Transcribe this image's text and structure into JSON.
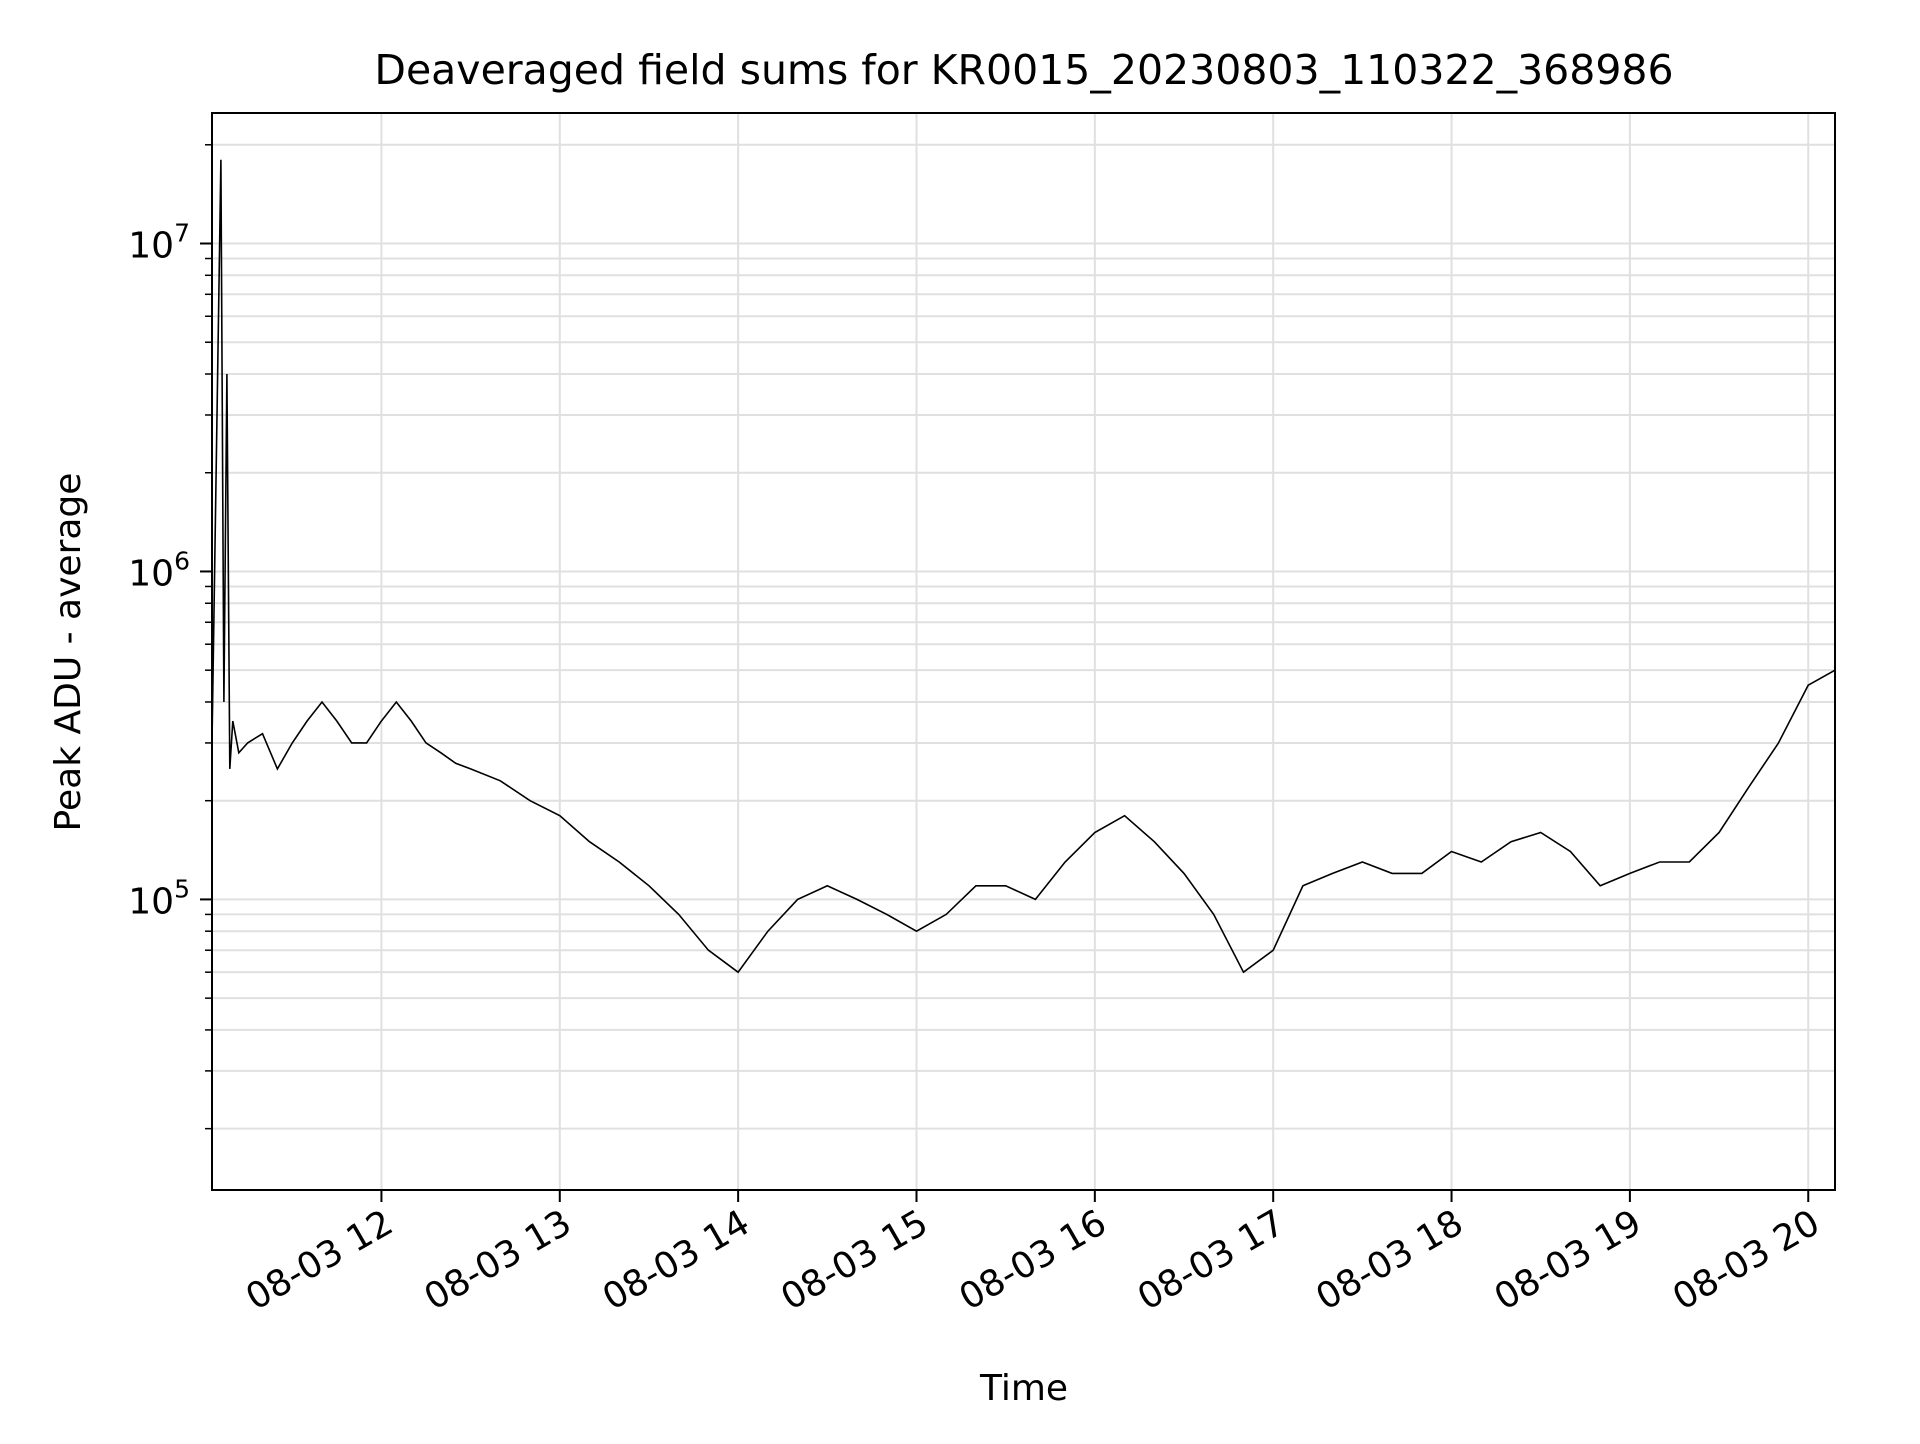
{
  "chart_data": {
    "type": "line",
    "title": "Deaveraged field sums for KR0015_20230803_110322_368986",
    "xlabel": "Time",
    "ylabel": "Peak ADU - average",
    "yscale": "log",
    "grid": true,
    "grid_minor": true,
    "legend": "none",
    "line_color": "#000000",
    "grid_color": "#e0e0e0",
    "xlim": [
      "2023-08-03 11:03",
      "2023-08-03 20:09"
    ],
    "ylim": [
      13000,
      25000000
    ],
    "x_ticks": [
      {
        "value": "2023-08-03 12:00",
        "label": "08-03 12"
      },
      {
        "value": "2023-08-03 13:00",
        "label": "08-03 13"
      },
      {
        "value": "2023-08-03 14:00",
        "label": "08-03 14"
      },
      {
        "value": "2023-08-03 15:00",
        "label": "08-03 15"
      },
      {
        "value": "2023-08-03 16:00",
        "label": "08-03 16"
      },
      {
        "value": "2023-08-03 17:00",
        "label": "08-03 17"
      },
      {
        "value": "2023-08-03 18:00",
        "label": "08-03 18"
      },
      {
        "value": "2023-08-03 19:00",
        "label": "08-03 19"
      },
      {
        "value": "2023-08-03 20:00",
        "label": "08-03 20"
      }
    ],
    "y_ticks": [
      {
        "value": 100000,
        "base": "10",
        "exp": "5"
      },
      {
        "value": 1000000,
        "base": "10",
        "exp": "6"
      },
      {
        "value": 10000000,
        "base": "10",
        "exp": "7"
      }
    ],
    "series": [
      {
        "x": [
          "2023-08-03 11:03",
          "2023-08-03 11:06",
          "2023-08-03 11:07",
          "2023-08-03 11:08",
          "2023-08-03 11:09",
          "2023-08-03 11:10",
          "2023-08-03 11:12",
          "2023-08-03 11:15",
          "2023-08-03 11:20",
          "2023-08-03 11:25",
          "2023-08-03 11:30",
          "2023-08-03 11:35",
          "2023-08-03 11:40",
          "2023-08-03 11:45",
          "2023-08-03 11:50",
          "2023-08-03 11:55",
          "2023-08-03 12:00",
          "2023-08-03 12:05",
          "2023-08-03 12:10",
          "2023-08-03 12:15",
          "2023-08-03 12:20",
          "2023-08-03 12:25",
          "2023-08-03 12:30",
          "2023-08-03 12:40",
          "2023-08-03 12:50",
          "2023-08-03 13:00",
          "2023-08-03 13:10",
          "2023-08-03 13:20",
          "2023-08-03 13:30",
          "2023-08-03 13:40",
          "2023-08-03 13:50",
          "2023-08-03 14:00",
          "2023-08-03 14:10",
          "2023-08-03 14:20",
          "2023-08-03 14:30",
          "2023-08-03 14:40",
          "2023-08-03 14:50",
          "2023-08-03 15:00",
          "2023-08-03 15:10",
          "2023-08-03 15:20",
          "2023-08-03 15:30",
          "2023-08-03 15:40",
          "2023-08-03 15:50",
          "2023-08-03 16:00",
          "2023-08-03 16:10",
          "2023-08-03 16:20",
          "2023-08-03 16:30",
          "2023-08-03 16:40",
          "2023-08-03 16:50",
          "2023-08-03 17:00",
          "2023-08-03 17:10",
          "2023-08-03 17:20",
          "2023-08-03 17:30",
          "2023-08-03 17:40",
          "2023-08-03 17:50",
          "2023-08-03 18:00",
          "2023-08-03 18:10",
          "2023-08-03 18:20",
          "2023-08-03 18:30",
          "2023-08-03 18:40",
          "2023-08-03 18:50",
          "2023-08-03 19:00",
          "2023-08-03 19:10",
          "2023-08-03 19:20",
          "2023-08-03 19:30",
          "2023-08-03 19:40",
          "2023-08-03 19:50",
          "2023-08-03 20:00",
          "2023-08-03 20:09"
        ],
        "values": [
          300000,
          18000000,
          400000,
          4000000,
          250000,
          350000,
          280000,
          300000,
          320000,
          250000,
          300000,
          350000,
          400000,
          350000,
          300000,
          300000,
          350000,
          400000,
          350000,
          300000,
          280000,
          260000,
          250000,
          230000,
          200000,
          180000,
          150000,
          130000,
          110000,
          90000,
          70000,
          60000,
          80000,
          100000,
          110000,
          100000,
          90000,
          80000,
          90000,
          110000,
          110000,
          100000,
          130000,
          160000,
          180000,
          150000,
          120000,
          90000,
          60000,
          70000,
          110000,
          120000,
          130000,
          120000,
          120000,
          140000,
          130000,
          150000,
          160000,
          140000,
          110000,
          120000,
          130000,
          130000,
          160000,
          220000,
          300000,
          450000,
          500000
        ]
      }
    ]
  }
}
